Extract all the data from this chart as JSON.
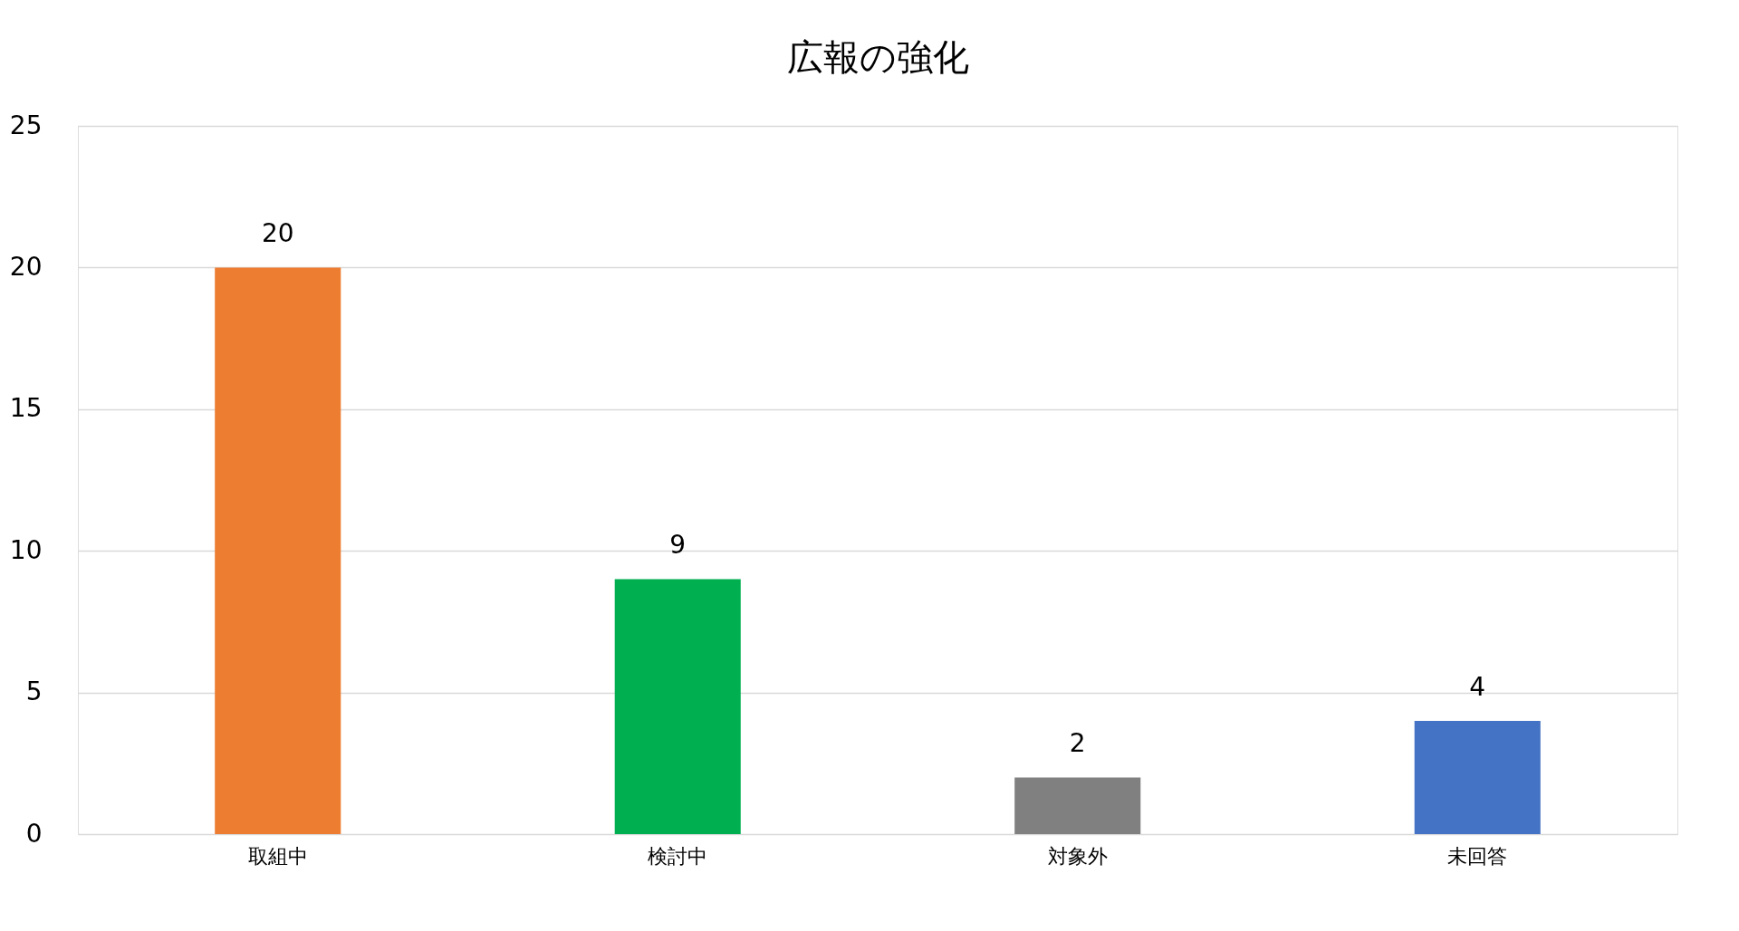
{
  "chart_data": {
    "type": "bar",
    "title": "広報の強化",
    "categories": [
      "取組中",
      "検討中",
      "対象外",
      "未回答"
    ],
    "values": [
      20,
      9,
      2,
      4
    ],
    "colors": [
      "#ed7d31",
      "#00b050",
      "#808080",
      "#4472c4"
    ],
    "ylim": [
      0,
      25
    ],
    "yticks": [
      0,
      5,
      10,
      15,
      20,
      25
    ],
    "grid": "y",
    "data_labels": true,
    "legend": false
  }
}
